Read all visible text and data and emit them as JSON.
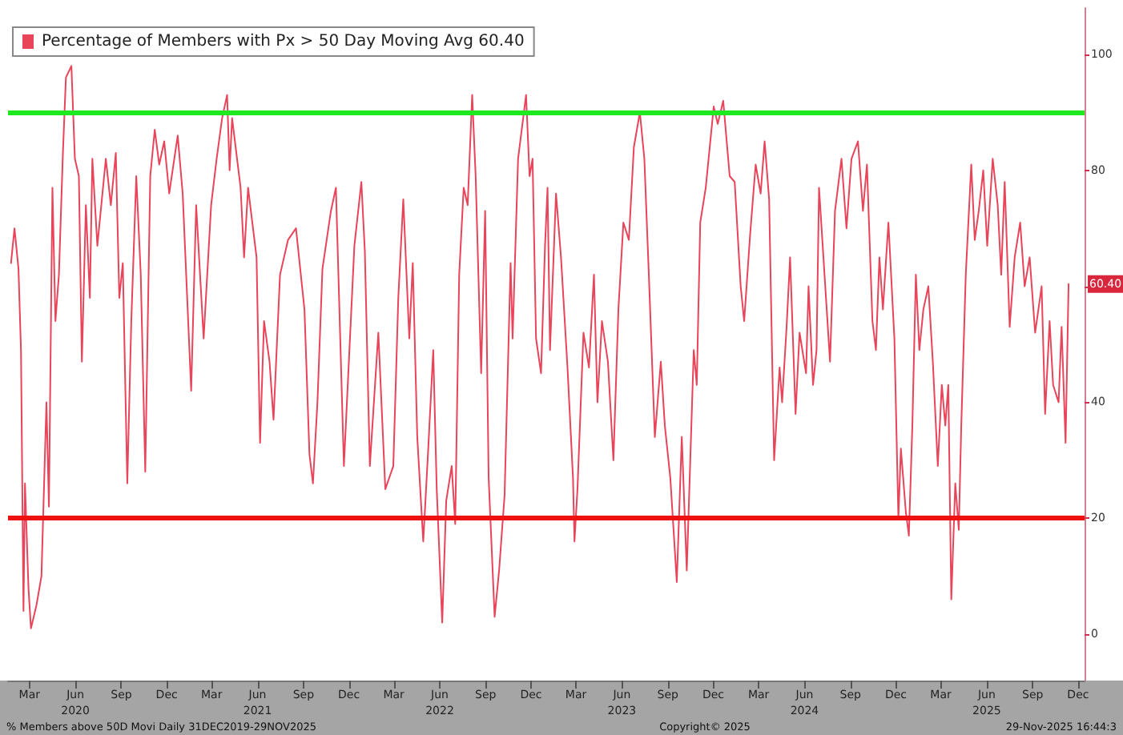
{
  "chart_data": {
    "type": "line",
    "x": [
      "2020-02-07",
      "2020-02-14",
      "2020-02-22",
      "2020-02-27",
      "2020-03-03",
      "2020-03-06",
      "2020-03-13",
      "2020-03-18",
      "2020-03-29",
      "2020-04-08",
      "2020-04-18",
      "2020-04-23",
      "2020-04-30",
      "2020-05-06",
      "2020-05-13",
      "2020-05-21",
      "2020-05-27",
      "2020-06-07",
      "2020-06-14",
      "2020-06-22",
      "2020-06-28",
      "2020-07-06",
      "2020-07-14",
      "2020-07-19",
      "2020-07-29",
      "2020-08-15",
      "2020-08-25",
      "2020-09-04",
      "2020-09-11",
      "2020-09-18",
      "2020-09-27",
      "2020-10-05",
      "2020-10-15",
      "2020-10-24",
      "2020-11-02",
      "2020-11-12",
      "2020-11-21",
      "2020-11-30",
      "2020-12-10",
      "2020-12-20",
      "2021-01-06",
      "2021-01-16",
      "2021-02-02",
      "2021-02-12",
      "2021-02-27",
      "2021-03-14",
      "2021-03-25",
      "2021-04-05",
      "2021-04-15",
      "2021-04-20",
      "2021-04-25",
      "2021-05-12",
      "2021-05-19",
      "2021-05-27",
      "2021-06-13",
      "2021-06-20",
      "2021-06-28",
      "2021-07-09",
      "2021-07-17",
      "2021-07-30",
      "2021-08-15",
      "2021-08-31",
      "2021-09-17",
      "2021-09-27",
      "2021-10-04",
      "2021-10-13",
      "2021-10-23",
      "2021-11-09",
      "2021-11-19",
      "2021-12-05",
      "2021-12-26",
      "2022-01-09",
      "2022-01-16",
      "2022-01-26",
      "2022-02-12",
      "2022-02-26",
      "2022-03-14",
      "2022-03-24",
      "2022-04-03",
      "2022-04-15",
      "2022-04-22",
      "2022-05-01",
      "2022-05-13",
      "2022-05-23",
      "2022-06-02",
      "2022-06-09",
      "2022-06-20",
      "2022-06-28",
      "2022-07-09",
      "2022-07-16",
      "2022-07-24",
      "2022-08-02",
      "2022-08-10",
      "2022-08-19",
      "2022-08-26",
      "2022-09-06",
      "2022-09-14",
      "2022-09-21",
      "2022-10-03",
      "2022-10-12",
      "2022-10-23",
      "2022-11-04",
      "2022-11-08",
      "2022-11-19",
      "2022-12-05",
      "2022-12-12",
      "2022-12-18",
      "2022-12-25",
      "2023-01-04",
      "2023-01-12",
      "2023-01-17",
      "2023-01-22",
      "2023-02-03",
      "2023-02-13",
      "2023-02-26",
      "2023-03-09",
      "2023-03-12",
      "2023-03-18",
      "2023-03-30",
      "2023-04-10",
      "2023-04-20",
      "2023-04-27",
      "2023-05-06",
      "2023-05-18",
      "2023-05-29",
      "2023-06-08",
      "2023-06-18",
      "2023-06-29",
      "2023-07-09",
      "2023-07-21",
      "2023-07-30",
      "2023-08-08",
      "2023-08-20",
      "2023-09-01",
      "2023-09-09",
      "2023-09-20",
      "2023-10-03",
      "2023-10-13",
      "2023-10-23",
      "2023-11-06",
      "2023-11-12",
      "2023-11-19",
      "2023-11-30",
      "2023-12-16",
      "2023-12-24",
      "2024-01-04",
      "2024-01-17",
      "2024-01-27",
      "2024-02-08",
      "2024-02-15",
      "2024-02-27",
      "2024-03-09",
      "2024-03-19",
      "2024-03-27",
      "2024-04-05",
      "2024-04-15",
      "2024-04-26",
      "2024-05-01",
      "2024-05-10",
      "2024-05-17",
      "2024-05-28",
      "2024-06-05",
      "2024-06-18",
      "2024-06-23",
      "2024-07-02",
      "2024-07-09",
      "2024-07-14",
      "2024-07-25",
      "2024-08-05",
      "2024-08-15",
      "2024-08-28",
      "2024-09-07",
      "2024-09-17",
      "2024-09-30",
      "2024-10-10",
      "2024-10-18",
      "2024-10-29",
      "2024-11-05",
      "2024-11-12",
      "2024-11-19",
      "2024-11-30",
      "2024-12-12",
      "2024-12-20",
      "2024-12-25",
      "2025-01-04",
      "2025-01-10",
      "2025-01-17",
      "2025-01-24",
      "2025-01-31",
      "2025-02-08",
      "2025-02-18",
      "2025-02-27",
      "2025-03-09",
      "2025-03-17",
      "2025-03-24",
      "2025-03-30",
      "2025-04-05",
      "2025-04-13",
      "2025-04-20",
      "2025-04-25",
      "2025-05-04",
      "2025-05-15",
      "2025-05-22",
      "2025-05-30",
      "2025-06-08",
      "2025-06-16",
      "2025-06-27",
      "2025-07-07",
      "2025-07-14",
      "2025-07-21",
      "2025-07-31",
      "2025-08-10",
      "2025-08-21",
      "2025-08-30",
      "2025-09-09",
      "2025-09-20",
      "2025-10-03",
      "2025-10-10",
      "2025-10-19",
      "2025-10-26",
      "2025-11-06",
      "2025-11-12",
      "2025-11-20",
      "2025-11-26"
    ],
    "series": [
      {
        "name": "Percentage of Members with Px > 50 Day Moving Avg 60.40",
        "color": "#e8445a",
        "values": [
          64,
          70,
          63,
          49,
          4,
          26,
          8,
          1,
          5,
          10,
          40,
          22,
          77,
          54,
          62,
          83,
          96,
          98,
          82,
          79,
          47,
          74,
          58,
          82,
          67,
          82,
          74,
          83,
          58,
          64,
          26,
          54,
          79,
          62,
          28,
          79,
          87,
          81,
          85,
          76,
          86,
          76,
          42,
          74,
          51,
          74,
          82,
          89,
          93,
          80,
          89,
          77,
          65,
          77,
          65,
          33,
          54,
          47,
          37,
          62,
          68,
          70,
          56,
          31,
          26,
          40,
          63,
          73,
          77,
          29,
          67,
          78,
          66,
          29,
          52,
          25,
          29,
          58,
          75,
          51,
          64,
          34,
          16,
          32,
          49,
          25,
          2,
          23,
          29,
          19,
          62,
          77,
          74,
          93,
          79,
          45,
          73,
          27,
          3,
          11,
          24,
          64,
          51,
          82,
          93,
          79,
          82,
          51,
          45,
          67,
          77,
          49,
          76,
          65,
          46,
          27,
          16,
          25,
          52,
          46,
          62,
          40,
          54,
          47,
          30,
          56,
          71,
          68,
          84,
          90,
          82,
          62,
          34,
          47,
          36,
          27,
          9,
          34,
          11,
          49,
          43,
          71,
          77,
          91,
          88,
          92,
          79,
          78,
          60,
          54,
          69,
          81,
          76,
          85,
          75,
          30,
          46,
          40,
          53,
          65,
          38,
          52,
          45,
          60,
          43,
          49,
          77,
          62,
          47,
          73,
          82,
          70,
          82,
          85,
          73,
          81,
          54,
          49,
          65,
          56,
          71,
          51,
          20,
          32,
          21,
          17,
          36,
          62,
          49,
          56,
          60,
          47,
          29,
          43,
          36,
          43,
          6,
          26,
          18,
          36,
          62,
          81,
          68,
          73,
          80,
          67,
          82,
          74,
          62,
          78,
          53,
          65,
          71,
          60,
          65,
          52,
          60,
          38,
          54,
          43,
          40,
          53,
          33,
          60.4
        ]
      }
    ],
    "xlim": [
      "2020-02-01",
      "2025-12-28"
    ],
    "xticks": [
      {
        "value": "2020-03-15",
        "label": "Mar"
      },
      {
        "value": "2020-06-15",
        "label": "Jun\n2020"
      },
      {
        "value": "2020-09-15",
        "label": "Sep"
      },
      {
        "value": "2020-12-15",
        "label": "Dec"
      },
      {
        "value": "2021-03-15",
        "label": "Mar"
      },
      {
        "value": "2021-06-15",
        "label": "Jun\n2021"
      },
      {
        "value": "2021-09-15",
        "label": "Sep"
      },
      {
        "value": "2021-12-15",
        "label": "Dec"
      },
      {
        "value": "2022-03-15",
        "label": "Mar"
      },
      {
        "value": "2022-06-15",
        "label": "Jun\n2022"
      },
      {
        "value": "2022-09-15",
        "label": "Sep"
      },
      {
        "value": "2022-12-15",
        "label": "Dec"
      },
      {
        "value": "2023-03-15",
        "label": "Mar"
      },
      {
        "value": "2023-06-15",
        "label": "Jun\n2023"
      },
      {
        "value": "2023-09-15",
        "label": "Sep"
      },
      {
        "value": "2023-12-15",
        "label": "Dec"
      },
      {
        "value": "2024-03-15",
        "label": "Mar"
      },
      {
        "value": "2024-06-15",
        "label": "Jun\n2024"
      },
      {
        "value": "2024-09-15",
        "label": "Sep"
      },
      {
        "value": "2024-12-15",
        "label": "Dec"
      },
      {
        "value": "2025-03-15",
        "label": "Mar"
      },
      {
        "value": "2025-06-15",
        "label": "Jun\n2025"
      },
      {
        "value": "2025-09-15",
        "label": "Sep"
      },
      {
        "value": "2025-12-15",
        "label": "Dec"
      }
    ],
    "ylim": [
      -8,
      108
    ],
    "yticks": [
      0,
      20,
      40,
      {
        "value": 60,
        "label": null
      },
      80,
      100
    ],
    "ref_lines": [
      {
        "axis": "y",
        "value": 90,
        "color": "#1ee81e"
      },
      {
        "axis": "y",
        "value": 20,
        "color": "#ee1111"
      }
    ],
    "annotations": [
      "% Members above 50D Movi Daily 31DEC2019-29NOV2025",
      "Copyright© 2025",
      "29-Nov-2025 16:44:3",
      "60.40"
    ],
    "legend": "top left",
    "grid": false,
    "marker": "none",
    "line_style": "solid"
  }
}
